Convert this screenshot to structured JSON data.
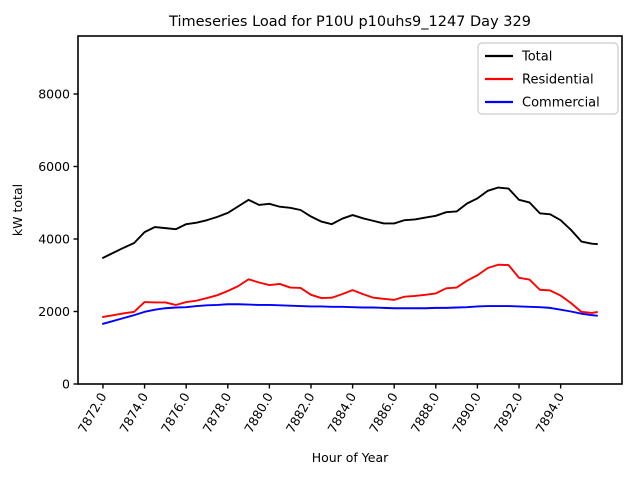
{
  "figure": {
    "background": "#ffffff",
    "axes_edge_color": "#000000",
    "legend_border_color": "#cccccc"
  },
  "chart_data": {
    "type": "line",
    "title": "Timeseries Load for P10U p10uhs9_1247  Day 329",
    "xlabel": "Hour of Year",
    "ylabel": "kW total",
    "grid": false,
    "legend_position": "upper right",
    "xlim": [
      7870.8,
      7896.95
    ],
    "ylim": [
      0,
      9600
    ],
    "x_ticks": [
      7872,
      7874,
      7876,
      7878,
      7880,
      7882,
      7884,
      7886,
      7888,
      7890,
      7892,
      7894
    ],
    "x_tick_labels": [
      "7872.0",
      "7874.0",
      "7876.0",
      "7878.0",
      "7880.0",
      "7882.0",
      "7884.0",
      "7886.0",
      "7888.0",
      "7890.0",
      "7892.0",
      "7894.0"
    ],
    "x_tick_rotation_deg": 60,
    "y_ticks": [
      0,
      2000,
      4000,
      6000,
      8000
    ],
    "y_tick_labels": [
      "0",
      "2000",
      "4000",
      "6000",
      "8000"
    ],
    "x": [
      7872,
      7872.5,
      7873,
      7873.5,
      7874,
      7874.5,
      7875,
      7875.5,
      7876,
      7876.5,
      7877,
      7877.5,
      7878,
      7878.5,
      7879,
      7879.5,
      7880,
      7880.5,
      7881,
      7881.5,
      7882,
      7882.5,
      7883,
      7883.5,
      7884,
      7884.5,
      7885,
      7885.5,
      7886,
      7886.5,
      7887,
      7887.5,
      7888,
      7888.5,
      7889,
      7889.5,
      7890,
      7890.5,
      7891,
      7891.5,
      7892,
      7892.5,
      7893,
      7893.5,
      7894,
      7894.5,
      7895,
      7895.5,
      7895.75
    ],
    "series": [
      {
        "name": "Total",
        "color": "#000000",
        "values": [
          3480,
          3620,
          3760,
          3890,
          4190,
          4330,
          4300,
          4270,
          4410,
          4450,
          4520,
          4610,
          4720,
          4900,
          5080,
          4940,
          4970,
          4890,
          4860,
          4800,
          4620,
          4480,
          4410,
          4560,
          4660,
          4570,
          4500,
          4430,
          4430,
          4520,
          4540,
          4590,
          4640,
          4740,
          4760,
          4980,
          5120,
          5330,
          5420,
          5390,
          5080,
          5010,
          4710,
          4680,
          4520,
          4250,
          3930,
          3870,
          3860
        ]
      },
      {
        "name": "Residential",
        "color": "#ff0000",
        "values": [
          1850,
          1900,
          1950,
          1990,
          2260,
          2250,
          2250,
          2180,
          2260,
          2300,
          2370,
          2450,
          2565,
          2700,
          2890,
          2800,
          2730,
          2760,
          2660,
          2650,
          2460,
          2370,
          2380,
          2480,
          2590,
          2480,
          2380,
          2350,
          2320,
          2410,
          2430,
          2460,
          2500,
          2640,
          2660,
          2850,
          3000,
          3200,
          3290,
          3280,
          2930,
          2880,
          2600,
          2580,
          2440,
          2230,
          1990,
          1960,
          1985
        ]
      },
      {
        "name": "Commercial",
        "color": "#0000ff",
        "values": [
          1660,
          1740,
          1820,
          1900,
          1990,
          2050,
          2090,
          2110,
          2120,
          2150,
          2170,
          2180,
          2200,
          2200,
          2190,
          2180,
          2180,
          2170,
          2160,
          2150,
          2140,
          2140,
          2130,
          2130,
          2120,
          2110,
          2110,
          2100,
          2090,
          2090,
          2090,
          2090,
          2100,
          2100,
          2110,
          2120,
          2140,
          2150,
          2150,
          2150,
          2140,
          2130,
          2120,
          2100,
          2050,
          2000,
          1940,
          1900,
          1885
        ]
      }
    ]
  }
}
